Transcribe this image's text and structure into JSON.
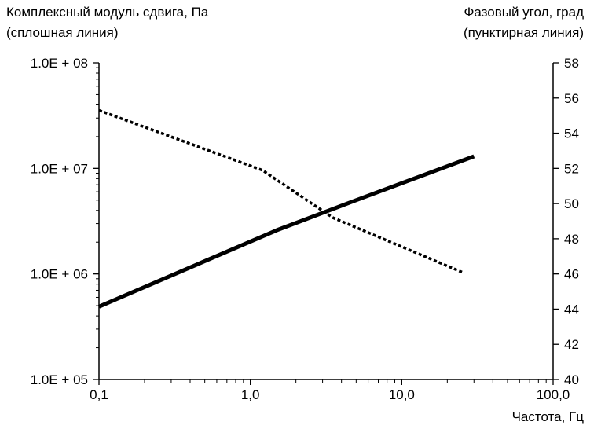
{
  "chart_data": {
    "type": "line",
    "ylabel_left": [
      "Комплексный модуль сдвига, Па",
      "(сплошная линия)"
    ],
    "ylabel_right": [
      "Фазовый угол, град",
      "(пунктирная линия)"
    ],
    "xlabel": "Частота, Гц",
    "x_scale": "log",
    "xlim": [
      0.1,
      100
    ],
    "x_ticks": [
      0.1,
      1,
      10,
      100
    ],
    "x_tick_labels": [
      "0,1",
      "1,0",
      "10,0",
      "100,0"
    ],
    "y_left_scale": "log",
    "ylim_left": [
      100000,
      100000000
    ],
    "y_left_ticks": [
      100000,
      1000000,
      10000000,
      100000000
    ],
    "y_left_tick_labels": [
      "1.0E + 05",
      "1.0E + 06",
      "1.0E + 07",
      "1.0E + 08"
    ],
    "ylim_right": [
      40,
      58
    ],
    "y_right_ticks": [
      40,
      42,
      44,
      46,
      48,
      50,
      52,
      54,
      56,
      58
    ],
    "y_right_tick_labels": [
      "40",
      "42",
      "44",
      "46",
      "48",
      "50",
      "52",
      "54",
      "56",
      "58"
    ],
    "grid": false,
    "series": [
      {
        "style": "solid",
        "axis": "left",
        "x": [
          0.1,
          1.5,
          5,
          30
        ],
        "y": [
          490000,
          2600000,
          5000000,
          13000000
        ]
      },
      {
        "style": "dotted",
        "axis": "right",
        "x": [
          0.1,
          1.2,
          3.5,
          25
        ],
        "y": [
          55.3,
          51.9,
          49.2,
          46.1
        ]
      }
    ]
  }
}
